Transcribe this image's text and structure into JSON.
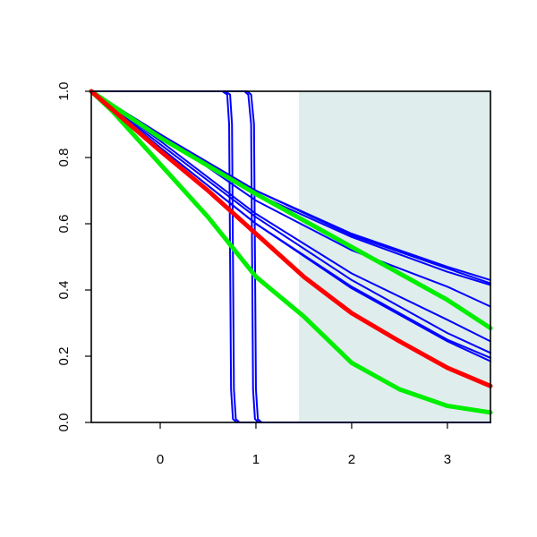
{
  "chart_data": {
    "type": "line",
    "title": "",
    "xlabel": "",
    "ylabel": "",
    "xlim": [
      -0.72,
      3.45
    ],
    "ylim": [
      0,
      1
    ],
    "x_ticks": [
      0,
      1,
      2,
      3
    ],
    "x_tick_labels": [
      "0",
      "1",
      "2",
      "3"
    ],
    "y_ticks": [
      0,
      0.2,
      0.4,
      0.6,
      0.8,
      1
    ],
    "y_tick_labels": [
      "0.0",
      "0.2",
      "0.4",
      "0.6",
      "0.8",
      "1.0"
    ],
    "grid": false,
    "legend": "none",
    "shaded_region": {
      "x": [
        1.45,
        3.45
      ],
      "color": "#e0eded"
    },
    "series": [
      {
        "color": "#0000ff",
        "width": "thin",
        "points": [
          [
            -0.72,
            1
          ],
          [
            0.65,
            1
          ],
          [
            0.7,
            0.99
          ],
          [
            0.72,
            0.9
          ],
          [
            0.73,
            0.5
          ],
          [
            0.74,
            0.1
          ],
          [
            0.76,
            0.01
          ],
          [
            0.8,
            0
          ],
          [
            3.45,
            0
          ]
        ]
      },
      {
        "color": "#0000ff",
        "width": "thin",
        "points": [
          [
            -0.72,
            1
          ],
          [
            0.68,
            1
          ],
          [
            0.73,
            0.99
          ],
          [
            0.75,
            0.9
          ],
          [
            0.76,
            0.5
          ],
          [
            0.77,
            0.1
          ],
          [
            0.79,
            0.01
          ],
          [
            0.83,
            0
          ],
          [
            3.45,
            0
          ]
        ]
      },
      {
        "color": "#0000ff",
        "width": "thin",
        "points": [
          [
            -0.72,
            1
          ],
          [
            0.88,
            1
          ],
          [
            0.92,
            0.99
          ],
          [
            0.95,
            0.9
          ],
          [
            0.96,
            0.5
          ],
          [
            0.97,
            0.1
          ],
          [
            0.99,
            0.01
          ],
          [
            1.03,
            0
          ],
          [
            3.45,
            0
          ]
        ]
      },
      {
        "color": "#0000ff",
        "width": "thin",
        "points": [
          [
            -0.72,
            1
          ],
          [
            0.91,
            1
          ],
          [
            0.95,
            0.99
          ],
          [
            0.98,
            0.9
          ],
          [
            0.99,
            0.5
          ],
          [
            1.0,
            0.1
          ],
          [
            1.02,
            0.01
          ],
          [
            1.06,
            0
          ],
          [
            3.45,
            0
          ]
        ]
      },
      {
        "color": "#0000ff",
        "width": "thin",
        "points": [
          [
            -0.72,
            1
          ],
          [
            0,
            0.87
          ],
          [
            1,
            0.7
          ],
          [
            2,
            0.57
          ],
          [
            3,
            0.47
          ],
          [
            3.45,
            0.43
          ]
        ]
      },
      {
        "color": "#0000ff",
        "width": "thin",
        "points": [
          [
            -0.72,
            1
          ],
          [
            0,
            0.87
          ],
          [
            1,
            0.7
          ],
          [
            2,
            0.565
          ],
          [
            3,
            0.465
          ],
          [
            3.45,
            0.42
          ]
        ]
      },
      {
        "color": "#0000ff",
        "width": "thin",
        "points": [
          [
            -0.72,
            1
          ],
          [
            0,
            0.87
          ],
          [
            1,
            0.69
          ],
          [
            2,
            0.56
          ],
          [
            3,
            0.455
          ],
          [
            3.45,
            0.415
          ]
        ]
      },
      {
        "color": "#0000ff",
        "width": "thin",
        "points": [
          [
            -0.72,
            1
          ],
          [
            0,
            0.87
          ],
          [
            1,
            0.67
          ],
          [
            2,
            0.52
          ],
          [
            3,
            0.41
          ],
          [
            3.45,
            0.35
          ]
        ]
      },
      {
        "color": "#0000ff",
        "width": "thin",
        "points": [
          [
            -0.72,
            1
          ],
          [
            0,
            0.85
          ],
          [
            1,
            0.63
          ],
          [
            2,
            0.45
          ],
          [
            3,
            0.31
          ],
          [
            3.45,
            0.245
          ]
        ]
      },
      {
        "color": "#0000ff",
        "width": "thin",
        "points": [
          [
            -0.72,
            1
          ],
          [
            0,
            0.84
          ],
          [
            1,
            0.62
          ],
          [
            2,
            0.43
          ],
          [
            3,
            0.27
          ],
          [
            3.45,
            0.21
          ]
        ]
      },
      {
        "color": "#0000ff",
        "width": "thin",
        "points": [
          [
            -0.72,
            1
          ],
          [
            0,
            0.83
          ],
          [
            1,
            0.6
          ],
          [
            2,
            0.41
          ],
          [
            3,
            0.25
          ],
          [
            3.45,
            0.195
          ]
        ]
      },
      {
        "color": "#0000ff",
        "width": "thin",
        "points": [
          [
            -0.72,
            1
          ],
          [
            0,
            0.83
          ],
          [
            1,
            0.6
          ],
          [
            2,
            0.405
          ],
          [
            3,
            0.245
          ],
          [
            3.45,
            0.185
          ]
        ]
      },
      {
        "color": "#00ee00",
        "width": "thick",
        "points": [
          [
            -0.72,
            1
          ],
          [
            0,
            0.86
          ],
          [
            1,
            0.69
          ],
          [
            2,
            0.53
          ],
          [
            3,
            0.37
          ],
          [
            3.45,
            0.285
          ]
        ]
      },
      {
        "color": "#00ee00",
        "width": "thick",
        "points": [
          [
            -0.72,
            1
          ],
          [
            -0.5,
            0.94
          ],
          [
            0,
            0.78
          ],
          [
            0.5,
            0.62
          ],
          [
            1,
            0.44
          ],
          [
            1.5,
            0.32
          ],
          [
            2,
            0.18
          ],
          [
            2.5,
            0.1
          ],
          [
            3,
            0.05
          ],
          [
            3.45,
            0.03
          ]
        ]
      },
      {
        "color": "#ff0000",
        "width": "thick",
        "points": [
          [
            -0.72,
            1
          ],
          [
            0,
            0.82
          ],
          [
            0.5,
            0.7
          ],
          [
            1,
            0.57
          ],
          [
            1.5,
            0.44
          ],
          [
            2,
            0.33
          ],
          [
            2.5,
            0.245
          ],
          [
            3,
            0.165
          ],
          [
            3.45,
            0.11
          ]
        ]
      }
    ]
  }
}
